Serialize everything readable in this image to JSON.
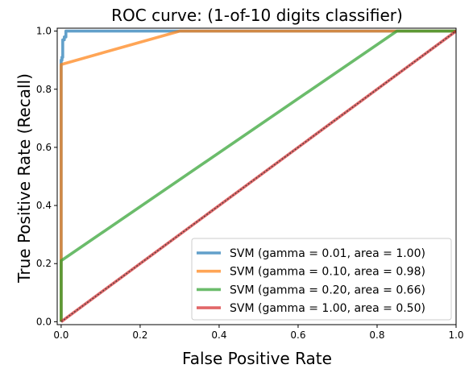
{
  "chart_data": {
    "type": "line",
    "title": "ROC curve: (1-of-10 digits classifier)",
    "xlabel": "False Positive Rate",
    "ylabel": "True Positive Rate (Recall)",
    "xlim": [
      -0.01,
      1.0
    ],
    "ylim": [
      -0.01,
      1.01
    ],
    "xticks": [
      0.0,
      0.2,
      0.4,
      0.6,
      0.8,
      1.0
    ],
    "yticks": [
      0.0,
      0.2,
      0.4,
      0.6,
      0.8,
      1.0
    ],
    "xtick_labels": [
      "0.0",
      "0.2",
      "0.4",
      "0.6",
      "0.8",
      "1.0"
    ],
    "ytick_labels": [
      "0.0",
      "0.2",
      "0.4",
      "0.6",
      "0.8",
      "1.0"
    ],
    "grid": false,
    "legend_position": "lower-right",
    "series": [
      {
        "name": "SVM (gamma = 0.01, area = 1.00)",
        "color": "#1f77b4",
        "x": [
          0.0,
          0.0,
          0.002,
          0.002,
          0.004,
          0.004,
          0.008,
          0.008,
          0.012,
          0.012,
          1.0
        ],
        "y": [
          0.0,
          0.9,
          0.9,
          0.91,
          0.91,
          0.97,
          0.97,
          0.98,
          0.98,
          1.0,
          1.0
        ]
      },
      {
        "name": "SVM (gamma = 0.10, area = 0.98)",
        "color": "#ff7f0e",
        "x": [
          0.0,
          0.0,
          0.3,
          1.0
        ],
        "y": [
          0.0,
          0.885,
          1.0,
          1.0
        ]
      },
      {
        "name": "SVM (gamma = 0.20, area = 0.66)",
        "color": "#2ca02c",
        "x": [
          0.0,
          0.0,
          0.85,
          1.0
        ],
        "y": [
          0.0,
          0.21,
          1.0,
          1.0
        ]
      },
      {
        "name": "SVM (gamma = 1.00, area = 0.50)",
        "color": "#d62728",
        "x": [
          0.0,
          1.0
        ],
        "y": [
          0.0,
          1.0
        ]
      }
    ],
    "diagonal": {
      "x": [
        0.0,
        1.0
      ],
      "y": [
        0.0,
        1.0
      ],
      "color": "#404040",
      "style": "dashed"
    }
  }
}
